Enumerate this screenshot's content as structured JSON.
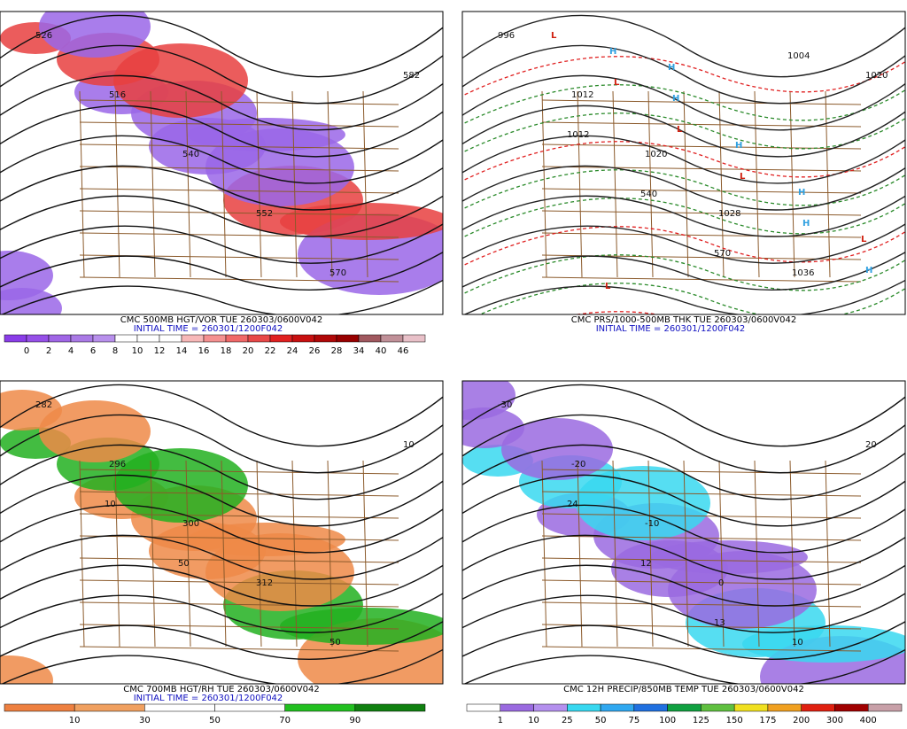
{
  "panels": [
    {
      "title": "CMC 500MB HGT/VOR TUE 260303/0600V042",
      "initial_time": "INITIAL TIME = 260301/1200F042",
      "colorbar": {
        "labels": [
          "0",
          "2",
          "4",
          "6",
          "8",
          "10",
          "12",
          "14",
          "16",
          "18",
          "20",
          "22",
          "24",
          "26",
          "28",
          "34",
          "40",
          "46"
        ],
        "colors": [
          "#8a3de8",
          "#9650e8",
          "#a066e6",
          "#aa7ae6",
          "#b890ec",
          "#ffffff",
          "#ffffff",
          "#ffffff",
          "#f7b8b8",
          "#f49090",
          "#f06868",
          "#e84848",
          "#e02020",
          "#c81010",
          "#b00808",
          "#980000",
          "#a0585f",
          "#c09098",
          "#e8c0c8"
        ]
      },
      "contour_labels": [
        "526",
        "516",
        "540",
        "552",
        "570",
        "582"
      ]
    },
    {
      "title": "CMC PRS/1000-500MB THK TUE 260303/0600V042",
      "initial_time": "INITIAL TIME = 260301/1200F042",
      "contour_labels": [
        "996",
        "1012",
        "1020",
        "1028",
        "1036",
        "1020",
        "1012",
        "540",
        "570",
        "1004"
      ],
      "centers": [
        "L",
        "L",
        "L",
        "L",
        "H",
        "H",
        "H",
        "H",
        "H",
        "H",
        "L",
        "L",
        "H"
      ]
    },
    {
      "title": "CMC 700MB HGT/RH TUE 260303/0600V042",
      "initial_time": "INITIAL TIME = 260301/1200F042",
      "colorbar": {
        "labels": [
          "10",
          "30",
          "50",
          "70",
          "90"
        ],
        "colors": [
          "#ee8040",
          "#f0a060",
          "#ffffff",
          "#ffffff",
          "#22c020",
          "#108010"
        ]
      },
      "contour_labels": [
        "282",
        "296",
        "300",
        "312",
        "50",
        "10",
        "10",
        "50"
      ]
    },
    {
      "title": "CMC 12H PRECIP/850MB TEMP TUE 260303/0600V042",
      "colorbar": {
        "labels": [
          "1",
          "10",
          "25",
          "50",
          "75",
          "100",
          "125",
          "150",
          "175",
          "200",
          "300",
          "400"
        ],
        "colors": [
          "#ffffff",
          "#9a6ae0",
          "#b490ee",
          "#38d8f0",
          "#30a8f0",
          "#2070e0",
          "#10a040",
          "#60c040",
          "#f0e020",
          "#f0a020",
          "#e02010",
          "#a00000",
          "#c8a0a8"
        ]
      },
      "contour_labels": [
        "-30",
        "-20",
        "-10",
        "0",
        "10",
        "20",
        "24",
        "12",
        "13"
      ]
    }
  ]
}
